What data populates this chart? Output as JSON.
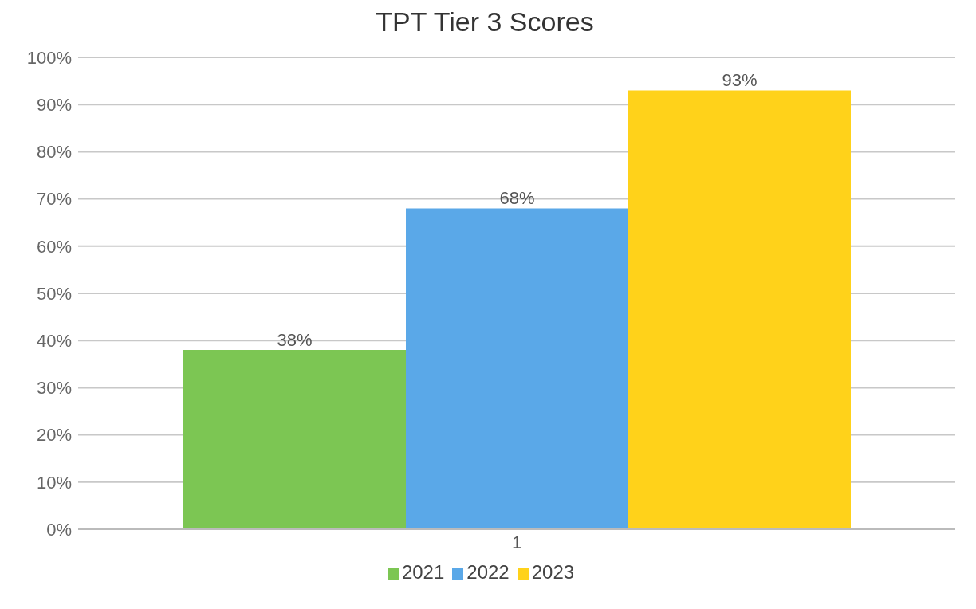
{
  "chart_data": {
    "type": "bar",
    "title": "TPT Tier 3 Scores",
    "categories": [
      "1"
    ],
    "series": [
      {
        "name": "2021",
        "color": "#7cc653",
        "values": [
          38
        ]
      },
      {
        "name": "2022",
        "color": "#5aa8e8",
        "values": [
          68
        ]
      },
      {
        "name": "2023",
        "color": "#ffd21a",
        "values": [
          93
        ]
      }
    ],
    "value_labels": [
      [
        "38%"
      ],
      [
        "68%"
      ],
      [
        "93%"
      ]
    ],
    "ylim": [
      0,
      100
    ],
    "yticks": [
      {
        "value": 0,
        "label": "0%"
      },
      {
        "value": 10,
        "label": "10%"
      },
      {
        "value": 20,
        "label": "20%"
      },
      {
        "value": 30,
        "label": "30%"
      },
      {
        "value": 40,
        "label": "40%"
      },
      {
        "value": 50,
        "label": "50%"
      },
      {
        "value": 60,
        "label": "60%"
      },
      {
        "value": 70,
        "label": "70%"
      },
      {
        "value": 80,
        "label": "80%"
      },
      {
        "value": 90,
        "label": "90%"
      },
      {
        "value": 100,
        "label": "100%"
      }
    ],
    "grid": "y",
    "legend": "bottom"
  }
}
